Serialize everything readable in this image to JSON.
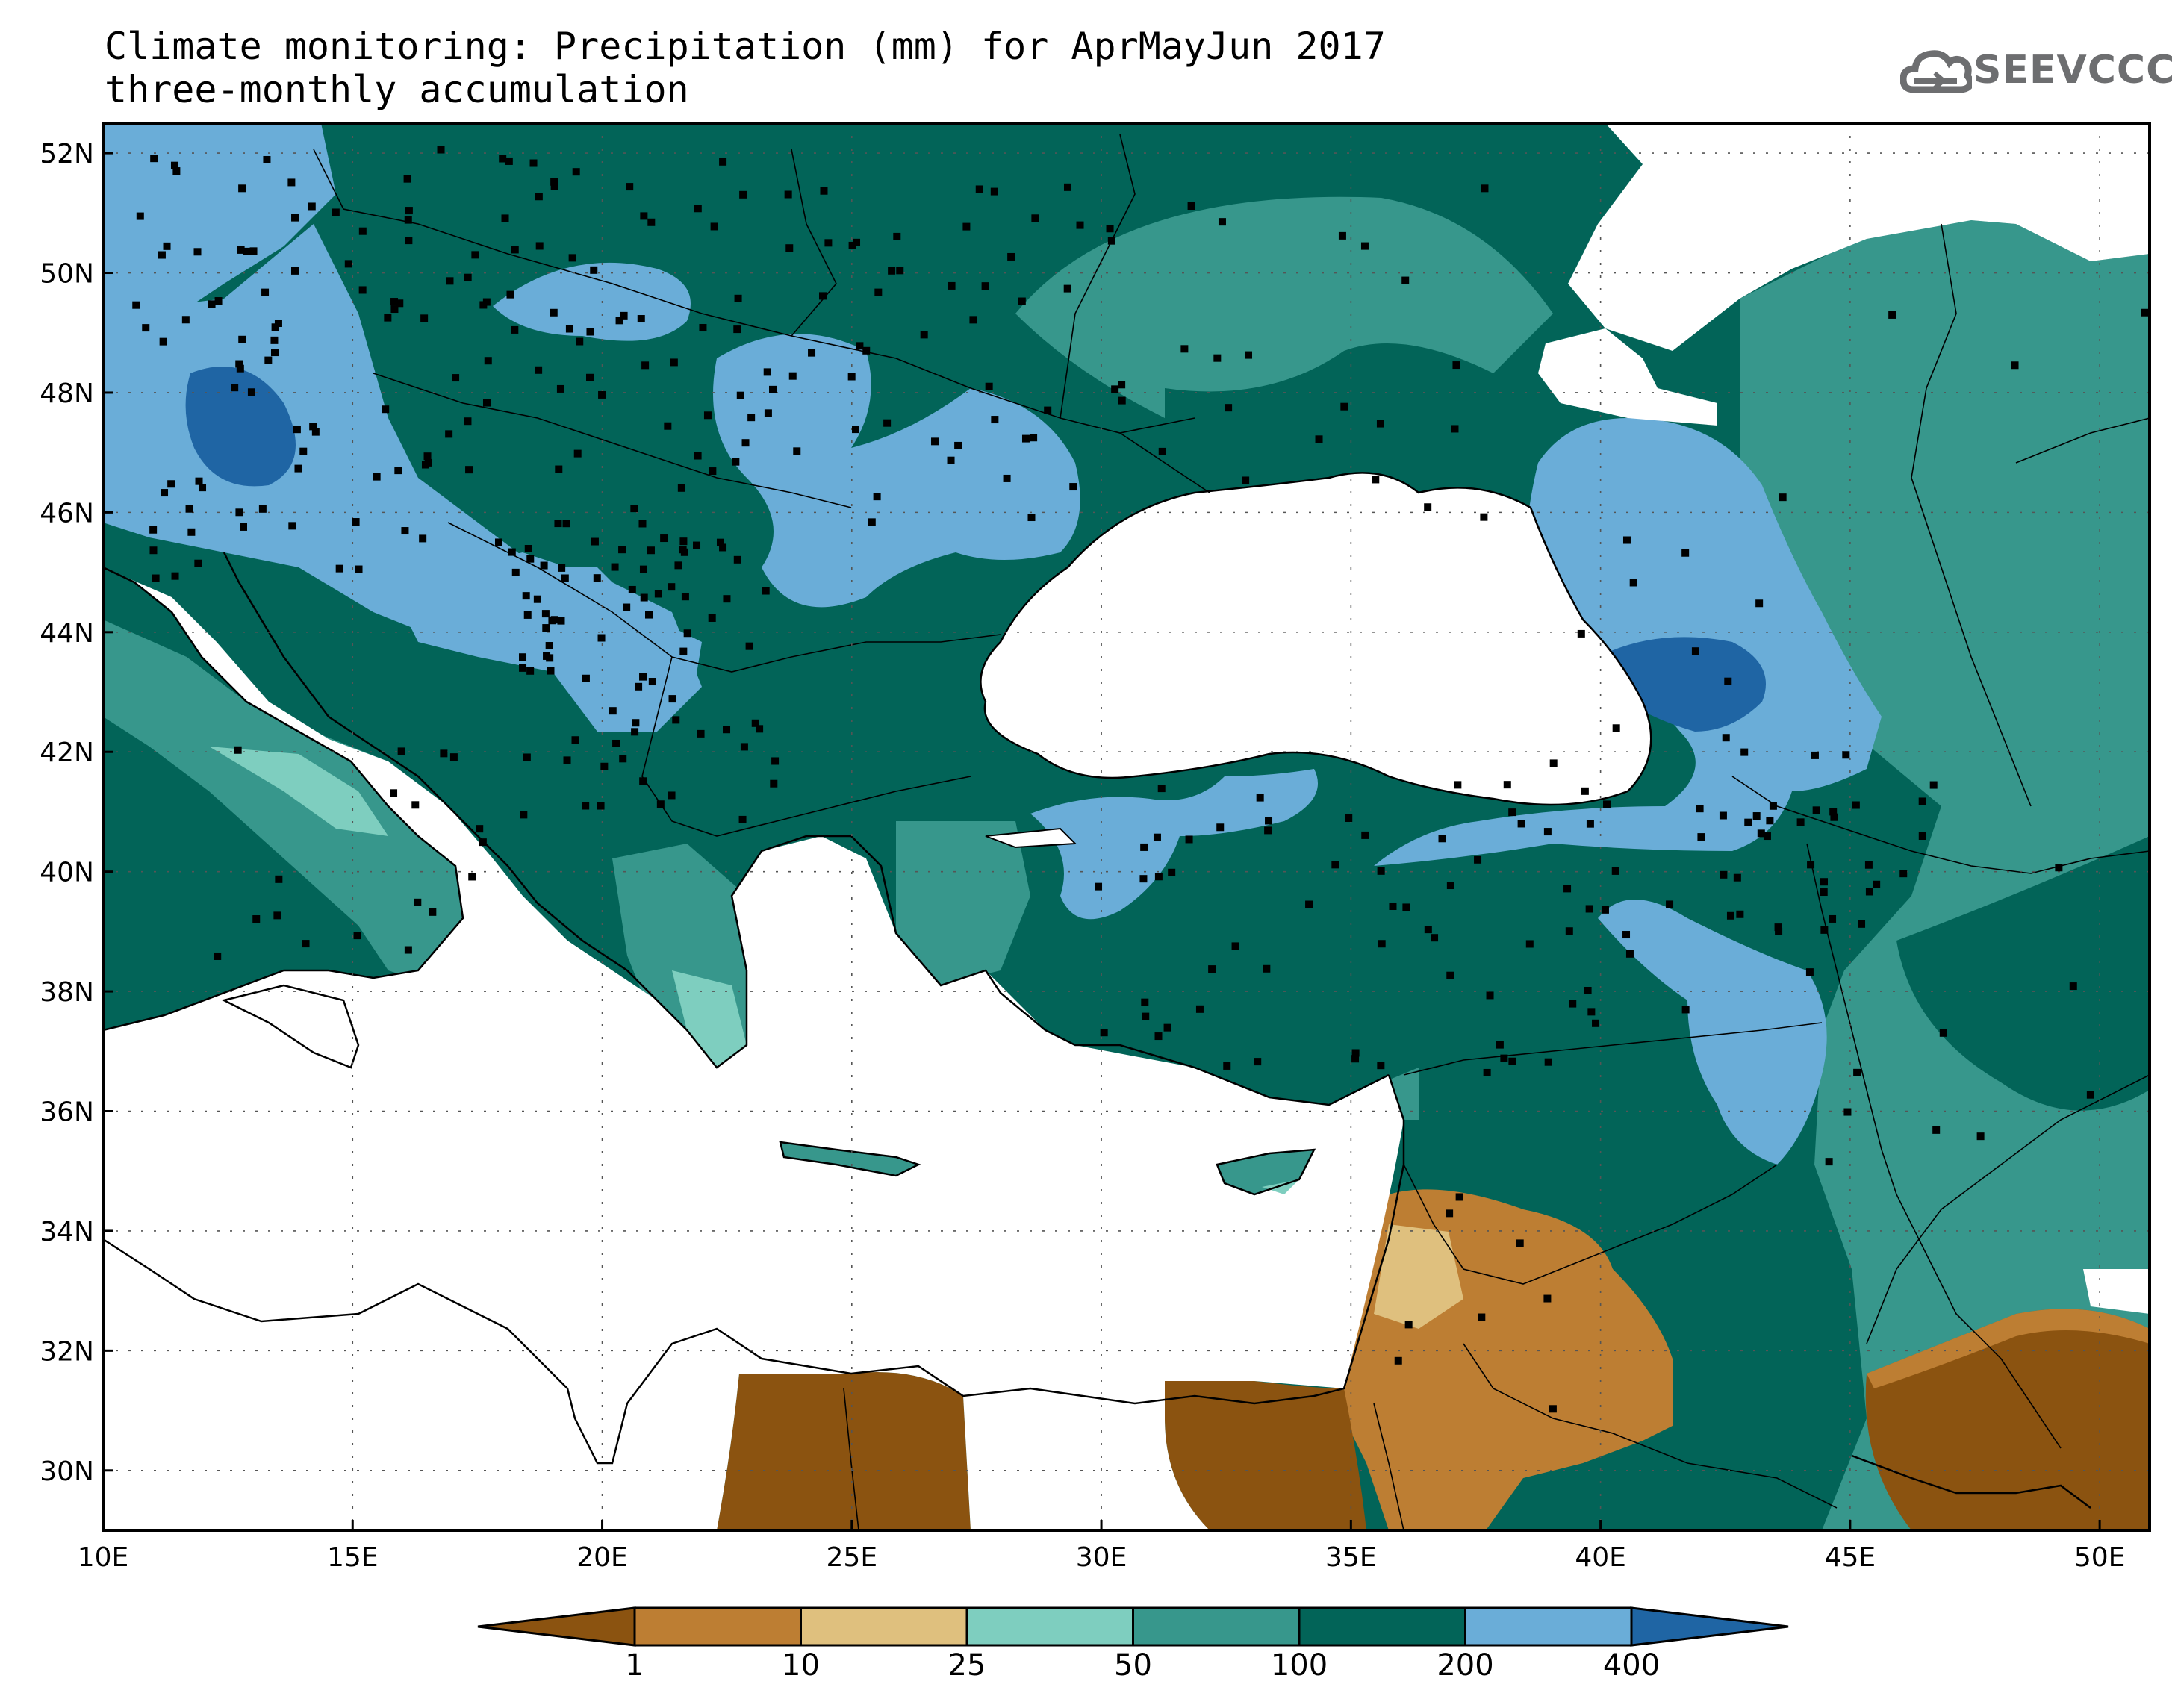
{
  "title": {
    "line1": "Climate monitoring: Precipitation (mm) for AprMayJun 2017",
    "line2": "three-monthly accumulation"
  },
  "logo": {
    "text": "SEEVCCC",
    "icon": "cloud-logo-icon"
  },
  "map": {
    "lon_range": [
      10,
      51
    ],
    "lat_range": [
      29,
      52.5
    ],
    "lon_ticks": [
      "10E",
      "15E",
      "20E",
      "25E",
      "30E",
      "35E",
      "40E",
      "45E",
      "50E"
    ],
    "lat_ticks": [
      "30N",
      "32N",
      "34N",
      "36N",
      "38N",
      "40N",
      "42N",
      "44N",
      "46N",
      "48N",
      "50N",
      "52N"
    ],
    "grid": true
  },
  "colorbar": {
    "labels": [
      "1",
      "10",
      "25",
      "50",
      "100",
      "200",
      "400"
    ],
    "colors": [
      "#8b5310",
      "#bd7e33",
      "#dfc07e",
      "#7ecebf",
      "#37978c",
      "#026458",
      "#6aadd8",
      "#1f65a4"
    ]
  }
}
